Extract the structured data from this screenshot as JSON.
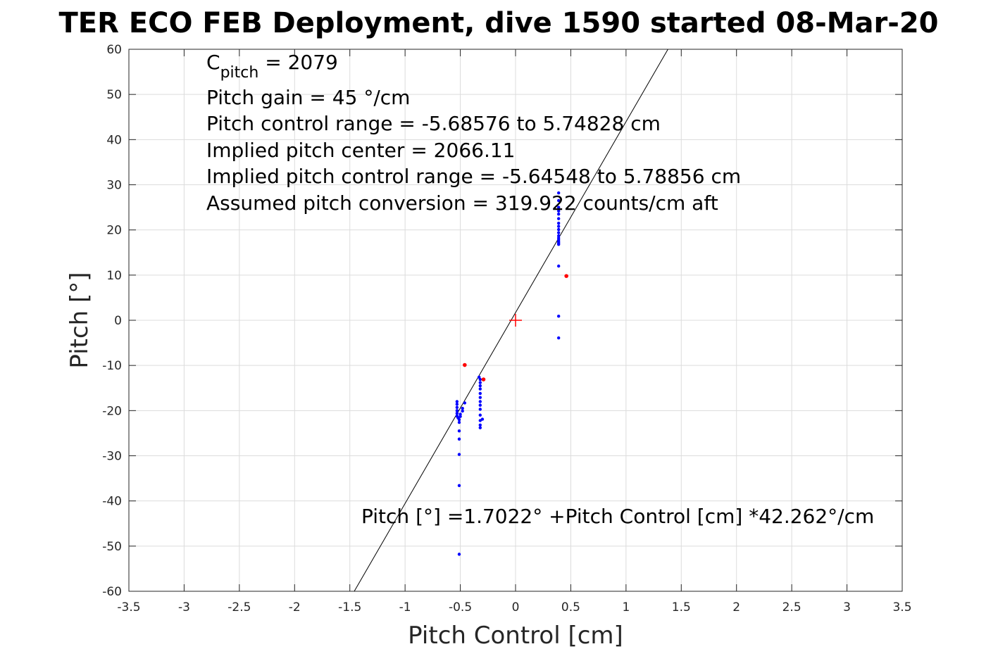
{
  "chart_data": {
    "type": "scatter",
    "title": "TER ECO FEB Deployment, dive 1590 started 08-Mar-20",
    "xlabel": "Pitch Control [cm]",
    "ylabel": "Pitch [°]",
    "xlim": [
      -3.5,
      3.5
    ],
    "ylim": [
      -60,
      60
    ],
    "grid": true,
    "xticks": [
      "-3.5",
      "-3",
      "-2.5",
      "-2",
      "-1.5",
      "-1",
      "-0.5",
      "0",
      "0.5",
      "1",
      "1.5",
      "2",
      "2.5",
      "3",
      "3.5"
    ],
    "yticks": [
      "60",
      "50",
      "40",
      "30",
      "20",
      "10",
      "0",
      "-10",
      "-20",
      "-30",
      "-40",
      "-50",
      "-60"
    ],
    "annotations": {
      "cpitch_main": "C",
      "cpitch_sub": "pitch",
      "cpitch_value": " = 2079",
      "pitch_gain": "Pitch gain = 45 °/cm",
      "control_range": "Pitch control range = -5.68576 to 5.74828 cm",
      "implied_center": "Implied pitch center = 2066.11",
      "implied_range": "Implied pitch control range = -5.64548 to 5.78856 cm",
      "conversion": "Assumed pitch conversion = 319.922 counts/cm aft",
      "fit_equation": "Pitch [°] =1.7022° +Pitch Control [cm] *42.262°/cm"
    },
    "fit_line": {
      "intercept": 1.7022,
      "slope": 42.262
    },
    "center_marker": {
      "x": 0,
      "y": 0,
      "color": "#ff0000"
    },
    "series": [
      {
        "color": "#0000ff",
        "points": [
          [
            0.39,
            28.2
          ],
          [
            0.39,
            26.5
          ],
          [
            0.39,
            25
          ],
          [
            0.39,
            24.2
          ],
          [
            0.39,
            23.5
          ],
          [
            0.39,
            22.5
          ],
          [
            0.39,
            21.5
          ],
          [
            0.39,
            20.8
          ],
          [
            0.39,
            20.1
          ],
          [
            0.39,
            19.4
          ],
          [
            0.39,
            18.7
          ],
          [
            0.39,
            18.2
          ],
          [
            0.39,
            17.8
          ],
          [
            0.39,
            17.4
          ],
          [
            0.39,
            17.1
          ],
          [
            0.39,
            16.8
          ],
          [
            0.39,
            12
          ],
          [
            0.39,
            0.9
          ],
          [
            0.39,
            -3.9
          ],
          [
            -0.53,
            -18
          ],
          [
            -0.53,
            -18.6
          ],
          [
            -0.53,
            -19.3
          ],
          [
            -0.53,
            -20
          ],
          [
            -0.53,
            -20.6
          ],
          [
            -0.53,
            -21.2
          ],
          [
            -0.52,
            -21.6
          ],
          [
            -0.51,
            -22
          ],
          [
            -0.51,
            -22.6
          ],
          [
            -0.51,
            -24.5
          ],
          [
            -0.51,
            -26.3
          ],
          [
            -0.51,
            -29.7
          ],
          [
            -0.51,
            -36.6
          ],
          [
            -0.51,
            -51.8
          ],
          [
            -0.5,
            -20.8
          ],
          [
            -0.5,
            -21.3
          ],
          [
            -0.48,
            -20.1
          ],
          [
            -0.48,
            -19.5
          ],
          [
            -0.46,
            -18.3
          ],
          [
            -0.33,
            -12.6
          ],
          [
            -0.32,
            -13.1
          ],
          [
            -0.32,
            -13.8
          ],
          [
            -0.32,
            -14.5
          ],
          [
            -0.32,
            -15.2
          ],
          [
            -0.32,
            -16.2
          ],
          [
            -0.32,
            -17.1
          ],
          [
            -0.32,
            -18
          ],
          [
            -0.32,
            -18.8
          ],
          [
            -0.32,
            -19.7
          ],
          [
            -0.32,
            -21
          ],
          [
            -0.32,
            -22.2
          ],
          [
            -0.32,
            -23.2
          ],
          [
            -0.32,
            -23.8
          ],
          [
            -0.3,
            -21.9
          ]
        ]
      },
      {
        "color": "#ff0000",
        "points": [
          [
            0.46,
            9.8
          ],
          [
            -0.46,
            -9.9
          ],
          [
            -0.29,
            -13.1
          ]
        ]
      }
    ]
  }
}
